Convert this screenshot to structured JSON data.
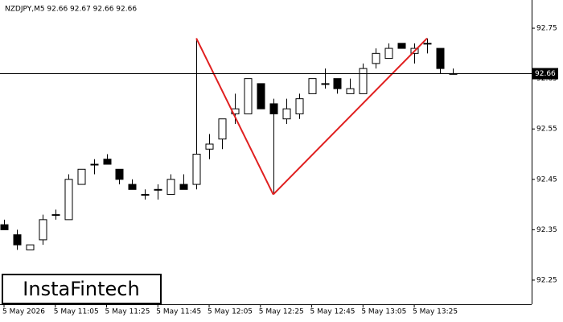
{
  "chart_data": {
    "type": "candlestick",
    "title": "NZDJPY,M5  92.66 92.67 92.66 92.66",
    "logo": "InstaFintech",
    "categories": [
      "5 May 2026",
      null,
      null,
      null,
      "5 May 11:05",
      null,
      null,
      null,
      "5 May 11:25",
      null,
      null,
      null,
      "5 May 11:45",
      null,
      null,
      null,
      "5 May 12:05",
      null,
      null,
      null,
      "5 May 12:25",
      null,
      null,
      null,
      "5 May 12:45",
      null,
      null,
      null,
      "5 May 13:05",
      null,
      null,
      null,
      "5 May 13:25",
      null,
      null,
      null
    ],
    "open": [
      92.36,
      92.34,
      92.31,
      92.33,
      92.38,
      92.37,
      92.44,
      92.48,
      92.49,
      92.47,
      92.44,
      92.42,
      92.43,
      92.42,
      92.44,
      92.44,
      92.51,
      92.53,
      92.58,
      92.58,
      92.64,
      92.6,
      92.57,
      92.58,
      92.62,
      92.64,
      92.65,
      92.62,
      92.62,
      92.68,
      92.69,
      92.72,
      92.7,
      92.72,
      92.71,
      92.66
    ],
    "high": [
      92.37,
      92.35,
      92.32,
      92.38,
      92.39,
      92.46,
      92.47,
      92.49,
      92.5,
      92.47,
      92.45,
      92.43,
      92.44,
      92.46,
      92.46,
      92.73,
      92.54,
      92.57,
      92.62,
      92.65,
      92.64,
      92.61,
      92.61,
      92.62,
      92.65,
      92.67,
      92.65,
      92.65,
      92.68,
      92.71,
      92.72,
      92.72,
      92.72,
      92.73,
      92.71,
      92.67
    ],
    "low": [
      92.35,
      92.31,
      92.31,
      92.32,
      92.37,
      92.37,
      92.44,
      92.46,
      92.48,
      92.44,
      92.43,
      92.41,
      92.41,
      92.42,
      92.43,
      92.43,
      92.49,
      92.51,
      92.56,
      92.58,
      92.59,
      92.42,
      92.56,
      92.57,
      92.62,
      92.63,
      92.62,
      92.62,
      92.62,
      92.67,
      92.69,
      92.71,
      92.68,
      92.7,
      92.66,
      92.66
    ],
    "close": [
      92.35,
      92.32,
      92.32,
      92.37,
      92.38,
      92.45,
      92.47,
      92.48,
      92.48,
      92.45,
      92.43,
      92.42,
      92.43,
      92.45,
      92.43,
      92.5,
      92.52,
      92.57,
      92.59,
      92.65,
      92.59,
      92.58,
      92.59,
      92.61,
      92.65,
      92.64,
      92.63,
      92.63,
      92.67,
      92.7,
      92.71,
      92.71,
      92.71,
      92.72,
      92.67,
      92.66
    ],
    "up_color": "#ffffff",
    "down_color": "#000000",
    "pattern_color": "#e02020",
    "last_price": 92.66,
    "ylim": [
      92.202,
      92.806
    ],
    "yticks": [
      92.25,
      92.35,
      92.45,
      92.55,
      92.65,
      92.75
    ]
  }
}
